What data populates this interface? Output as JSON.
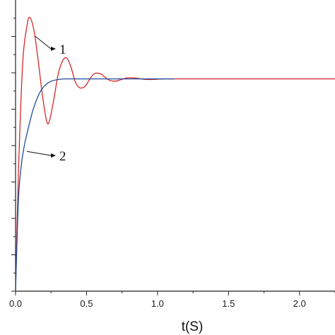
{
  "chart_data": {
    "type": "line",
    "title": "",
    "xlabel": "t(S)",
    "ylabel": "",
    "xlim": [
      0,
      2.25
    ],
    "ylim": [
      0,
      1.0
    ],
    "x_ticks": [
      0.0,
      0.5,
      1.0,
      1.5,
      2.0
    ],
    "x_tick_labels": [
      "0.0",
      "0.5",
      "1.0",
      "1.5",
      "2.0"
    ],
    "y_ticks": [
      0.0,
      0.125,
      0.25,
      0.375,
      0.5,
      0.625,
      0.75,
      0.875
    ],
    "y_tick_labels": [
      "",
      "",
      "",
      "",
      "",
      "",
      "",
      ""
    ],
    "grid": false,
    "legend": "none",
    "series": [
      {
        "color": "#d62728",
        "x": [
          0.0,
          0.02,
          0.05,
          0.08,
          0.1,
          0.13,
          0.16,
          0.19,
          0.22,
          0.24,
          0.27,
          0.3,
          0.33,
          0.36,
          0.39,
          0.42,
          0.45,
          0.48,
          0.5,
          0.53,
          0.56,
          0.6,
          0.63,
          0.66,
          0.7,
          0.74,
          0.78,
          0.82,
          0.86,
          0.9,
          0.95,
          1.0,
          1.05,
          1.1,
          1.2,
          1.5,
          1.8,
          2.1,
          2.25
        ],
        "y": [
          0.0,
          0.4,
          0.78,
          0.91,
          0.94,
          0.895,
          0.79,
          0.67,
          0.582,
          0.587,
          0.66,
          0.744,
          0.79,
          0.801,
          0.77,
          0.72,
          0.699,
          0.7,
          0.71,
          0.734,
          0.748,
          0.746,
          0.735,
          0.725,
          0.721,
          0.726,
          0.732,
          0.733,
          0.731,
          0.728,
          0.727,
          0.728,
          0.729,
          0.729,
          0.729,
          0.729,
          0.729,
          0.729,
          0.729
        ]
      },
      {
        "color": "#1f4e9a",
        "x": [
          0.0,
          0.02,
          0.04,
          0.06,
          0.08,
          0.1,
          0.12,
          0.15,
          0.18,
          0.21,
          0.25,
          0.3,
          0.35,
          0.4,
          0.5,
          0.6,
          0.7,
          0.8,
          0.9,
          1.0,
          1.1,
          1.12
        ],
        "y": [
          0.0,
          0.31,
          0.43,
          0.495,
          0.54,
          0.58,
          0.618,
          0.66,
          0.69,
          0.708,
          0.721,
          0.727,
          0.729,
          0.729,
          0.729,
          0.729,
          0.729,
          0.729,
          0.729,
          0.729,
          0.729,
          0.729
        ]
      }
    ],
    "annotations": [
      {
        "text": "1",
        "target_x": 0.12,
        "target_y": 0.875
      },
      {
        "text": "2",
        "target_x": 0.06,
        "target_y": 0.48
      }
    ]
  }
}
